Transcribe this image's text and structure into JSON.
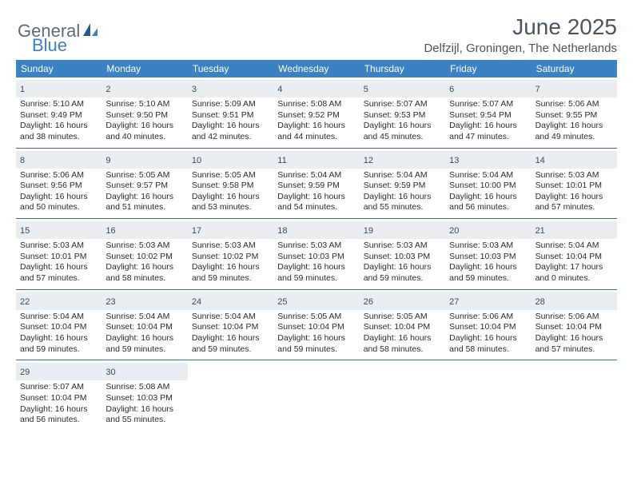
{
  "brand": {
    "part1": "General",
    "part2": "Blue"
  },
  "title": "June 2025",
  "location": "Delfzijl, Groningen, The Netherlands",
  "colors": {
    "header_bg": "#3b82c4",
    "header_text": "#ffffff",
    "daynum_bg": "#e9eef2",
    "rule": "#3b6fa8",
    "body_text": "#2b2b2b",
    "title_text": "#4a5561"
  },
  "dayNames": [
    "Sunday",
    "Monday",
    "Tuesday",
    "Wednesday",
    "Thursday",
    "Friday",
    "Saturday"
  ],
  "weeks": [
    [
      {
        "n": "1",
        "sr": "Sunrise: 5:10 AM",
        "ss": "Sunset: 9:49 PM",
        "d1": "Daylight: 16 hours",
        "d2": "and 38 minutes."
      },
      {
        "n": "2",
        "sr": "Sunrise: 5:10 AM",
        "ss": "Sunset: 9:50 PM",
        "d1": "Daylight: 16 hours",
        "d2": "and 40 minutes."
      },
      {
        "n": "3",
        "sr": "Sunrise: 5:09 AM",
        "ss": "Sunset: 9:51 PM",
        "d1": "Daylight: 16 hours",
        "d2": "and 42 minutes."
      },
      {
        "n": "4",
        "sr": "Sunrise: 5:08 AM",
        "ss": "Sunset: 9:52 PM",
        "d1": "Daylight: 16 hours",
        "d2": "and 44 minutes."
      },
      {
        "n": "5",
        "sr": "Sunrise: 5:07 AM",
        "ss": "Sunset: 9:53 PM",
        "d1": "Daylight: 16 hours",
        "d2": "and 45 minutes."
      },
      {
        "n": "6",
        "sr": "Sunrise: 5:07 AM",
        "ss": "Sunset: 9:54 PM",
        "d1": "Daylight: 16 hours",
        "d2": "and 47 minutes."
      },
      {
        "n": "7",
        "sr": "Sunrise: 5:06 AM",
        "ss": "Sunset: 9:55 PM",
        "d1": "Daylight: 16 hours",
        "d2": "and 49 minutes."
      }
    ],
    [
      {
        "n": "8",
        "sr": "Sunrise: 5:06 AM",
        "ss": "Sunset: 9:56 PM",
        "d1": "Daylight: 16 hours",
        "d2": "and 50 minutes."
      },
      {
        "n": "9",
        "sr": "Sunrise: 5:05 AM",
        "ss": "Sunset: 9:57 PM",
        "d1": "Daylight: 16 hours",
        "d2": "and 51 minutes."
      },
      {
        "n": "10",
        "sr": "Sunrise: 5:05 AM",
        "ss": "Sunset: 9:58 PM",
        "d1": "Daylight: 16 hours",
        "d2": "and 53 minutes."
      },
      {
        "n": "11",
        "sr": "Sunrise: 5:04 AM",
        "ss": "Sunset: 9:59 PM",
        "d1": "Daylight: 16 hours",
        "d2": "and 54 minutes."
      },
      {
        "n": "12",
        "sr": "Sunrise: 5:04 AM",
        "ss": "Sunset: 9:59 PM",
        "d1": "Daylight: 16 hours",
        "d2": "and 55 minutes."
      },
      {
        "n": "13",
        "sr": "Sunrise: 5:04 AM",
        "ss": "Sunset: 10:00 PM",
        "d1": "Daylight: 16 hours",
        "d2": "and 56 minutes."
      },
      {
        "n": "14",
        "sr": "Sunrise: 5:03 AM",
        "ss": "Sunset: 10:01 PM",
        "d1": "Daylight: 16 hours",
        "d2": "and 57 minutes."
      }
    ],
    [
      {
        "n": "15",
        "sr": "Sunrise: 5:03 AM",
        "ss": "Sunset: 10:01 PM",
        "d1": "Daylight: 16 hours",
        "d2": "and 57 minutes."
      },
      {
        "n": "16",
        "sr": "Sunrise: 5:03 AM",
        "ss": "Sunset: 10:02 PM",
        "d1": "Daylight: 16 hours",
        "d2": "and 58 minutes."
      },
      {
        "n": "17",
        "sr": "Sunrise: 5:03 AM",
        "ss": "Sunset: 10:02 PM",
        "d1": "Daylight: 16 hours",
        "d2": "and 59 minutes."
      },
      {
        "n": "18",
        "sr": "Sunrise: 5:03 AM",
        "ss": "Sunset: 10:03 PM",
        "d1": "Daylight: 16 hours",
        "d2": "and 59 minutes."
      },
      {
        "n": "19",
        "sr": "Sunrise: 5:03 AM",
        "ss": "Sunset: 10:03 PM",
        "d1": "Daylight: 16 hours",
        "d2": "and 59 minutes."
      },
      {
        "n": "20",
        "sr": "Sunrise: 5:03 AM",
        "ss": "Sunset: 10:03 PM",
        "d1": "Daylight: 16 hours",
        "d2": "and 59 minutes."
      },
      {
        "n": "21",
        "sr": "Sunrise: 5:04 AM",
        "ss": "Sunset: 10:04 PM",
        "d1": "Daylight: 17 hours",
        "d2": "and 0 minutes."
      }
    ],
    [
      {
        "n": "22",
        "sr": "Sunrise: 5:04 AM",
        "ss": "Sunset: 10:04 PM",
        "d1": "Daylight: 16 hours",
        "d2": "and 59 minutes."
      },
      {
        "n": "23",
        "sr": "Sunrise: 5:04 AM",
        "ss": "Sunset: 10:04 PM",
        "d1": "Daylight: 16 hours",
        "d2": "and 59 minutes."
      },
      {
        "n": "24",
        "sr": "Sunrise: 5:04 AM",
        "ss": "Sunset: 10:04 PM",
        "d1": "Daylight: 16 hours",
        "d2": "and 59 minutes."
      },
      {
        "n": "25",
        "sr": "Sunrise: 5:05 AM",
        "ss": "Sunset: 10:04 PM",
        "d1": "Daylight: 16 hours",
        "d2": "and 59 minutes."
      },
      {
        "n": "26",
        "sr": "Sunrise: 5:05 AM",
        "ss": "Sunset: 10:04 PM",
        "d1": "Daylight: 16 hours",
        "d2": "and 58 minutes."
      },
      {
        "n": "27",
        "sr": "Sunrise: 5:06 AM",
        "ss": "Sunset: 10:04 PM",
        "d1": "Daylight: 16 hours",
        "d2": "and 58 minutes."
      },
      {
        "n": "28",
        "sr": "Sunrise: 5:06 AM",
        "ss": "Sunset: 10:04 PM",
        "d1": "Daylight: 16 hours",
        "d2": "and 57 minutes."
      }
    ],
    [
      {
        "n": "29",
        "sr": "Sunrise: 5:07 AM",
        "ss": "Sunset: 10:04 PM",
        "d1": "Daylight: 16 hours",
        "d2": "and 56 minutes."
      },
      {
        "n": "30",
        "sr": "Sunrise: 5:08 AM",
        "ss": "Sunset: 10:03 PM",
        "d1": "Daylight: 16 hours",
        "d2": "and 55 minutes."
      },
      null,
      null,
      null,
      null,
      null
    ]
  ]
}
